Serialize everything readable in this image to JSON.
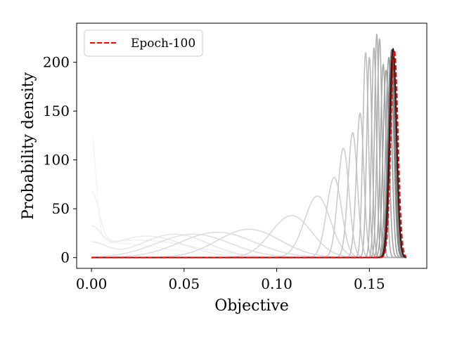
{
  "chart_data": {
    "type": "line",
    "title": "",
    "xlabel": "Objective",
    "ylabel": "Probability density",
    "xlim": [
      -0.008,
      0.181
    ],
    "ylim": [
      -11,
      240
    ],
    "grid": false,
    "legend": {
      "placement": "upper-left",
      "entries": [
        {
          "label": "Epoch-100",
          "color": "#ff0000",
          "style": "dashed"
        }
      ]
    },
    "x_ticks": [
      {
        "value": 0.0,
        "label": "0.00"
      },
      {
        "value": 0.05,
        "label": "0.05"
      },
      {
        "value": 0.1,
        "label": "0.10"
      },
      {
        "value": 0.15,
        "label": "0.15"
      }
    ],
    "y_ticks": [
      {
        "value": 0,
        "label": "0"
      },
      {
        "value": 50,
        "label": "50"
      },
      {
        "value": 100,
        "label": "100"
      },
      {
        "value": 150,
        "label": "150"
      },
      {
        "value": 200,
        "label": "200"
      }
    ],
    "series_note_x_range": [
      0.0,
      0.17
    ],
    "series": [
      {
        "components": [
          {
            "mu": 0.0,
            "sigma": 0.0025,
            "height": 110
          },
          {
            "mu": 0.01,
            "sigma": 0.03,
            "height": 15
          }
        ],
        "gray": 0.96
      },
      {
        "components": [
          {
            "mu": 0.0,
            "sigma": 0.004,
            "height": 55
          },
          {
            "mu": 0.025,
            "sigma": 0.03,
            "height": 18
          }
        ],
        "gray": 0.94
      },
      {
        "components": [
          {
            "mu": 0.0,
            "sigma": 0.005,
            "height": 25
          },
          {
            "mu": 0.03,
            "sigma": 0.02,
            "height": 22
          }
        ],
        "gray": 0.92
      },
      {
        "components": [
          {
            "mu": 0.0,
            "sigma": 0.008,
            "height": 15
          },
          {
            "mu": 0.045,
            "sigma": 0.018,
            "height": 24
          }
        ],
        "gray": 0.9
      },
      {
        "components": [
          {
            "mu": 0.055,
            "sigma": 0.02,
            "height": 24
          }
        ],
        "gray": 0.88
      },
      {
        "components": [
          {
            "mu": 0.068,
            "sigma": 0.02,
            "height": 26
          }
        ],
        "gray": 0.87
      },
      {
        "components": [
          {
            "mu": 0.085,
            "sigma": 0.017,
            "height": 29
          }
        ],
        "gray": 0.86
      },
      {
        "components": [
          {
            "mu": 0.108,
            "sigma": 0.011,
            "height": 43
          }
        ],
        "gray": 0.85
      },
      {
        "components": [
          {
            "mu": 0.122,
            "sigma": 0.007,
            "height": 63
          }
        ],
        "gray": 0.84
      },
      {
        "components": [
          {
            "mu": 0.131,
            "sigma": 0.004,
            "height": 82
          }
        ],
        "gray": 0.82
      },
      {
        "components": [
          {
            "mu": 0.136,
            "sigma": 0.003,
            "height": 112
          }
        ],
        "gray": 0.8
      },
      {
        "components": [
          {
            "mu": 0.141,
            "sigma": 0.0025,
            "height": 128
          }
        ],
        "gray": 0.78
      },
      {
        "components": [
          {
            "mu": 0.145,
            "sigma": 0.002,
            "height": 148
          }
        ],
        "gray": 0.76
      },
      {
        "components": [
          {
            "mu": 0.148,
            "sigma": 0.0015,
            "height": 210
          }
        ],
        "gray": 0.74
      },
      {
        "components": [
          {
            "mu": 0.15,
            "sigma": 0.0014,
            "height": 205
          }
        ],
        "gray": 0.72
      },
      {
        "components": [
          {
            "mu": 0.1525,
            "sigma": 0.0013,
            "height": 215
          }
        ],
        "gray": 0.7
      },
      {
        "components": [
          {
            "mu": 0.154,
            "sigma": 0.0012,
            "height": 229
          }
        ],
        "gray": 0.69
      },
      {
        "components": [
          {
            "mu": 0.1555,
            "sigma": 0.0013,
            "height": 224
          }
        ],
        "gray": 0.68
      },
      {
        "components": [
          {
            "mu": 0.1575,
            "sigma": 0.0015,
            "height": 198
          }
        ],
        "gray": 0.66
      },
      {
        "components": [
          {
            "mu": 0.159,
            "sigma": 0.0016,
            "height": 192
          }
        ],
        "gray": 0.63
      },
      {
        "components": [
          {
            "mu": 0.1605,
            "sigma": 0.0016,
            "height": 205
          }
        ],
        "gray": 0.6
      },
      {
        "components": [
          {
            "mu": 0.1615,
            "sigma": 0.0017,
            "height": 200
          }
        ],
        "gray": 0.55
      },
      {
        "components": [
          {
            "mu": 0.162,
            "sigma": 0.0017,
            "height": 213
          }
        ],
        "gray": 0.48
      },
      {
        "components": [
          {
            "mu": 0.1625,
            "sigma": 0.0018,
            "height": 210
          }
        ],
        "gray": 0.38
      },
      {
        "components": [
          {
            "mu": 0.163,
            "sigma": 0.0018,
            "height": 205
          }
        ],
        "gray": 0.25
      },
      {
        "components": [
          {
            "mu": 0.1628,
            "sigma": 0.0019,
            "height": 214
          }
        ],
        "gray": 0.1
      },
      {
        "name": "Epoch-100",
        "components": [
          {
            "mu": 0.1635,
            "sigma": 0.0019,
            "height": 212
          }
        ],
        "color": "#ff0000",
        "dashed": true
      }
    ]
  }
}
